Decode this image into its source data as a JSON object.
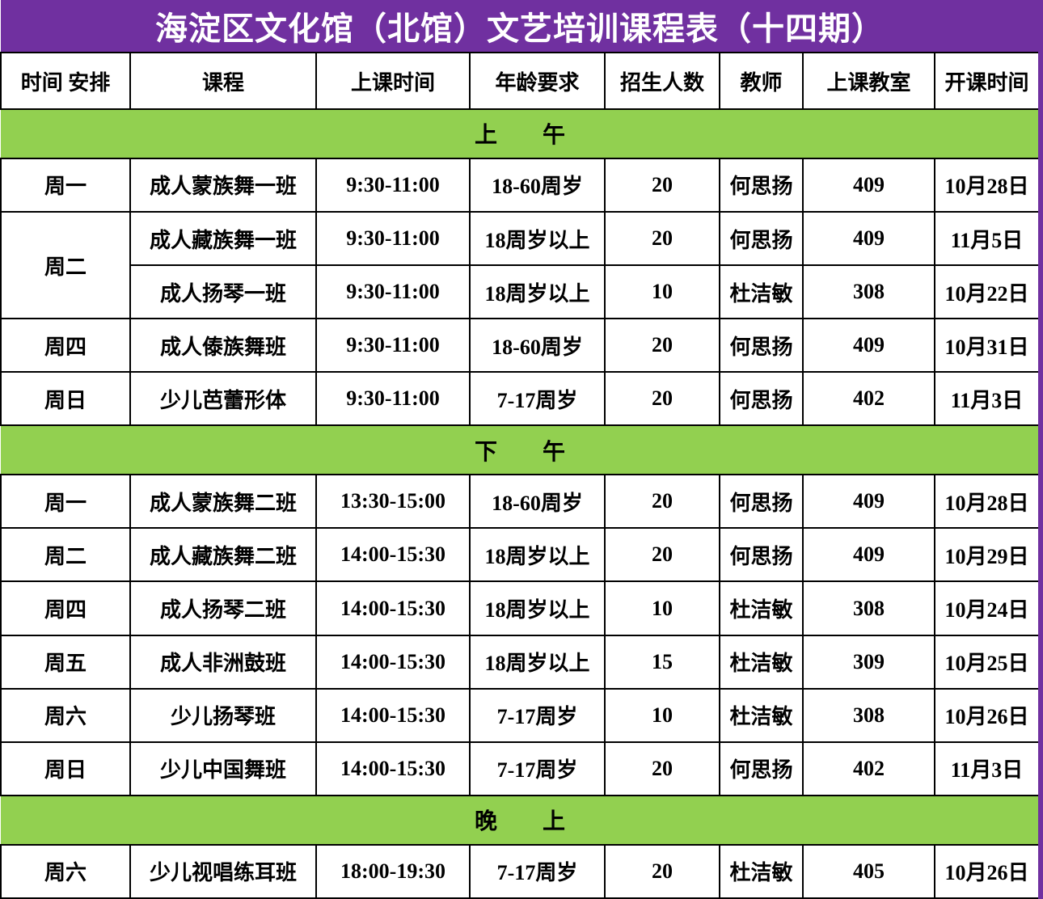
{
  "title": "海淀区文化馆（北馆）文艺培训课程表（十四期）",
  "columns": [
    "时间 安排",
    "课程",
    "上课时间",
    "年龄要求",
    "招生人数",
    "教师",
    "上课教室",
    "开课时间"
  ],
  "colors": {
    "title_bar_purple": "#7030A0",
    "section_band_green": "#92D050",
    "grid_border_black": "#000000",
    "title_text_white": "#FFFFFF",
    "cell_text_black": "#000000"
  },
  "sections": [
    {
      "label": "上　　午",
      "rows": [
        {
          "day": "周一",
          "day_rowspan": 1,
          "course": "成人蒙族舞一班",
          "time": "9:30-11:00",
          "age": "18-60周岁",
          "capacity": "20",
          "teacher": "何思扬",
          "room": "409",
          "start_date": "10月28日"
        },
        {
          "day": "周二",
          "day_rowspan": 2,
          "course": "成人藏族舞一班",
          "time": "9:30-11:00",
          "age": "18周岁以上",
          "capacity": "20",
          "teacher": "何思扬",
          "room": "409",
          "start_date": "11月5日"
        },
        {
          "day": null,
          "day_rowspan": 0,
          "course": "成人扬琴一班",
          "time": "9:30-11:00",
          "age": "18周岁以上",
          "capacity": "10",
          "teacher": "杜洁敏",
          "room": "308",
          "start_date": "10月22日"
        },
        {
          "day": "周四",
          "day_rowspan": 1,
          "course": "成人傣族舞班",
          "time": "9:30-11:00",
          "age": "18-60周岁",
          "capacity": "20",
          "teacher": "何思扬",
          "room": "409",
          "start_date": "10月31日"
        },
        {
          "day": "周日",
          "day_rowspan": 1,
          "course": "少儿芭蕾形体",
          "time": "9:30-11:00",
          "age": "7-17周岁",
          "capacity": "20",
          "teacher": "何思扬",
          "room": "402",
          "start_date": "11月3日"
        }
      ]
    },
    {
      "label": "下　　午",
      "rows": [
        {
          "day": "周一",
          "day_rowspan": 1,
          "course": "成人蒙族舞二班",
          "time": "13:30-15:00",
          "age": "18-60周岁",
          "capacity": "20",
          "teacher": "何思扬",
          "room": "409",
          "start_date": "10月28日"
        },
        {
          "day": "周二",
          "day_rowspan": 1,
          "course": "成人藏族舞二班",
          "time": "14:00-15:30",
          "age": "18周岁以上",
          "capacity": "20",
          "teacher": "何思扬",
          "room": "409",
          "start_date": "10月29日"
        },
        {
          "day": "周四",
          "day_rowspan": 1,
          "course": "成人扬琴二班",
          "time": "14:00-15:30",
          "age": "18周岁以上",
          "capacity": "10",
          "teacher": "杜洁敏",
          "room": "308",
          "start_date": "10月24日"
        },
        {
          "day": "周五",
          "day_rowspan": 1,
          "course": "成人非洲鼓班",
          "time": "14:00-15:30",
          "age": "18周岁以上",
          "capacity": "15",
          "teacher": "杜洁敏",
          "room": "309",
          "start_date": "10月25日"
        },
        {
          "day": "周六",
          "day_rowspan": 1,
          "course": "少儿扬琴班",
          "time": "14:00-15:30",
          "age": "7-17周岁",
          "capacity": "10",
          "teacher": "杜洁敏",
          "room": "308",
          "start_date": "10月26日"
        },
        {
          "day": "周日",
          "day_rowspan": 1,
          "course": "少儿中国舞班",
          "time": "14:00-15:30",
          "age": "7-17周岁",
          "capacity": "20",
          "teacher": "何思扬",
          "room": "402",
          "start_date": "11月3日"
        }
      ]
    },
    {
      "label": "晚　　上",
      "rows": [
        {
          "day": "周六",
          "day_rowspan": 1,
          "course": "少儿视唱练耳班",
          "time": "18:00-19:30",
          "age": "7-17周岁",
          "capacity": "20",
          "teacher": "杜洁敏",
          "room": "405",
          "start_date": "10月26日"
        }
      ]
    }
  ]
}
